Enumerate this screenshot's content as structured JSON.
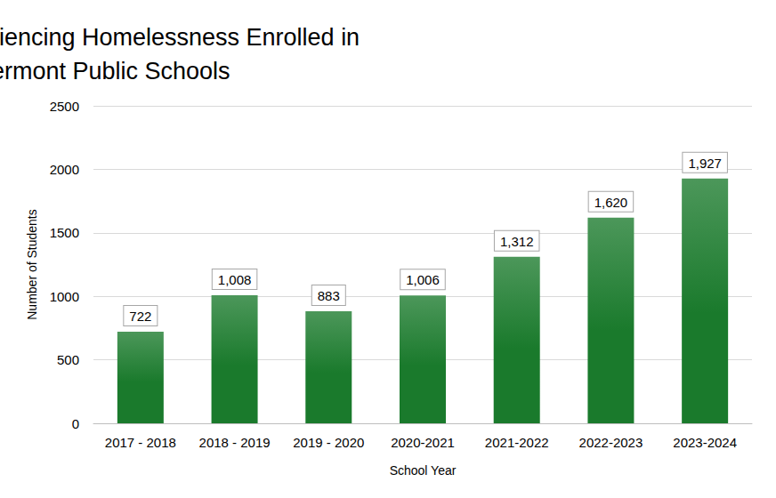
{
  "chart_data": {
    "type": "bar",
    "title": "Children Experiencing Homelessness Enrolled in Vermont Public Schools",
    "x_label": "School Year",
    "y_label": "Number of Students",
    "categories": [
      "2017 - 2018",
      "2018 - 2019",
      "2019 - 2020",
      "2020-2021",
      "2021-2022",
      "2022-2023",
      "2023-2024"
    ],
    "values": [
      722,
      1008,
      883,
      1006,
      1312,
      1620,
      1927
    ],
    "value_labels": [
      "722",
      "1,008",
      "883",
      "1,006",
      "1,312",
      "1,620",
      "1,927"
    ],
    "color": "#1a7a2c",
    "ylim": [
      0,
      2500
    ],
    "yticks": [
      0,
      500,
      1000,
      1500,
      2000,
      2500
    ],
    "grid": true,
    "data_labels": true
  }
}
